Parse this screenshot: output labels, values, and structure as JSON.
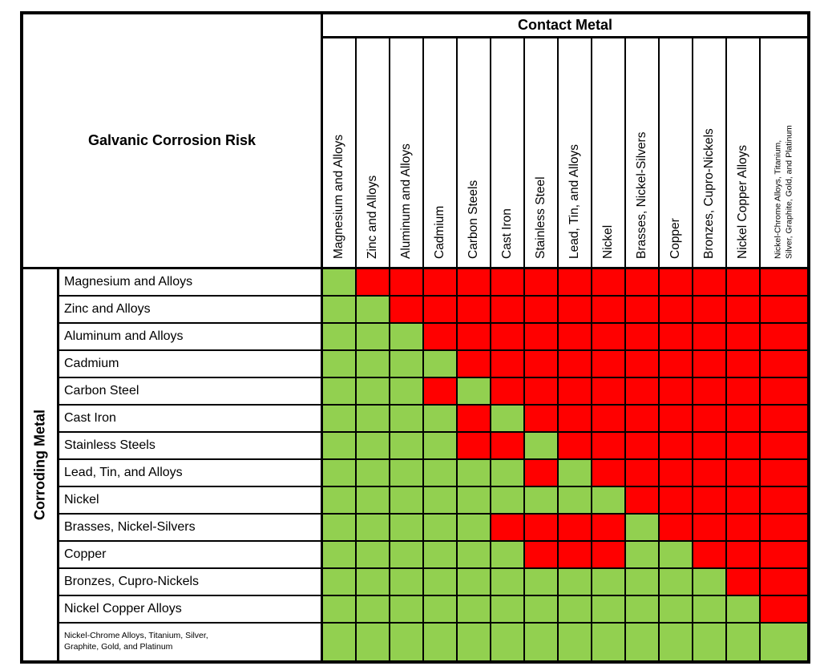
{
  "chart_data": {
    "type": "heatmap",
    "title": "Galvanic Corrosion Risk",
    "x_axis_label": "Contact Metal",
    "y_axis_label": "Corroding Metal",
    "x_categories": [
      "Magnesium and Alloys",
      "Zinc and Alloys",
      "Aluminum and Alloys",
      "Cadmium",
      "Carbon Steels",
      "Cast Iron",
      "Stainless Steel",
      "Lead, Tin, and Alloys",
      "Nickel",
      "Brasses, Nickel-Silvers",
      "Copper",
      "Bronzes, Cupro-Nickels",
      "Nickel Copper Alloys",
      "Nickel-Chrome Alloys, Titanium,\nSilver, Graphite, Gold, and Platinum"
    ],
    "y_categories": [
      "Magnesium and Alloys",
      "Zinc and Alloys",
      "Aluminum and Alloys",
      "Cadmium",
      "Carbon Steel",
      "Cast Iron",
      "Stainless Steels",
      "Lead, Tin, and Alloys",
      "Nickel",
      "Brasses, Nickel-Silvers",
      "Copper",
      "Bronzes, Cupro-Nickels",
      "Nickel Copper Alloys",
      "Nickel-Chrome Alloys, Titanium, Silver,\nGraphite, Gold, and Platinum"
    ],
    "cell_states": {
      "G": "green",
      "R": "red"
    },
    "colors": {
      "G": "#92D050",
      "R": "#FF0000",
      "grid": "#000000"
    },
    "matrix": [
      "GRRRRRRRRRRRRR",
      "GGRRRRRRRRRRRR",
      "GGGRRRRRRRRRRR",
      "GGGGRRRRRRRRRR",
      "GGGRGRRRRRRRRR",
      "GGGGRGRRRRRRRR",
      "GGGGRRGRRRRRRR",
      "GGGGGGRGRRRRRR",
      "GGGGGGGGGRRRRR",
      "GGGGGRRRRGRRRR",
      "GGGGGGRRRGGRRR",
      "GGGGGGGGGGGGRR",
      "GGGGGGGGGGGGGR",
      "GGGGGGGGGGGGGG"
    ],
    "legend_position": "none",
    "grid": true
  }
}
